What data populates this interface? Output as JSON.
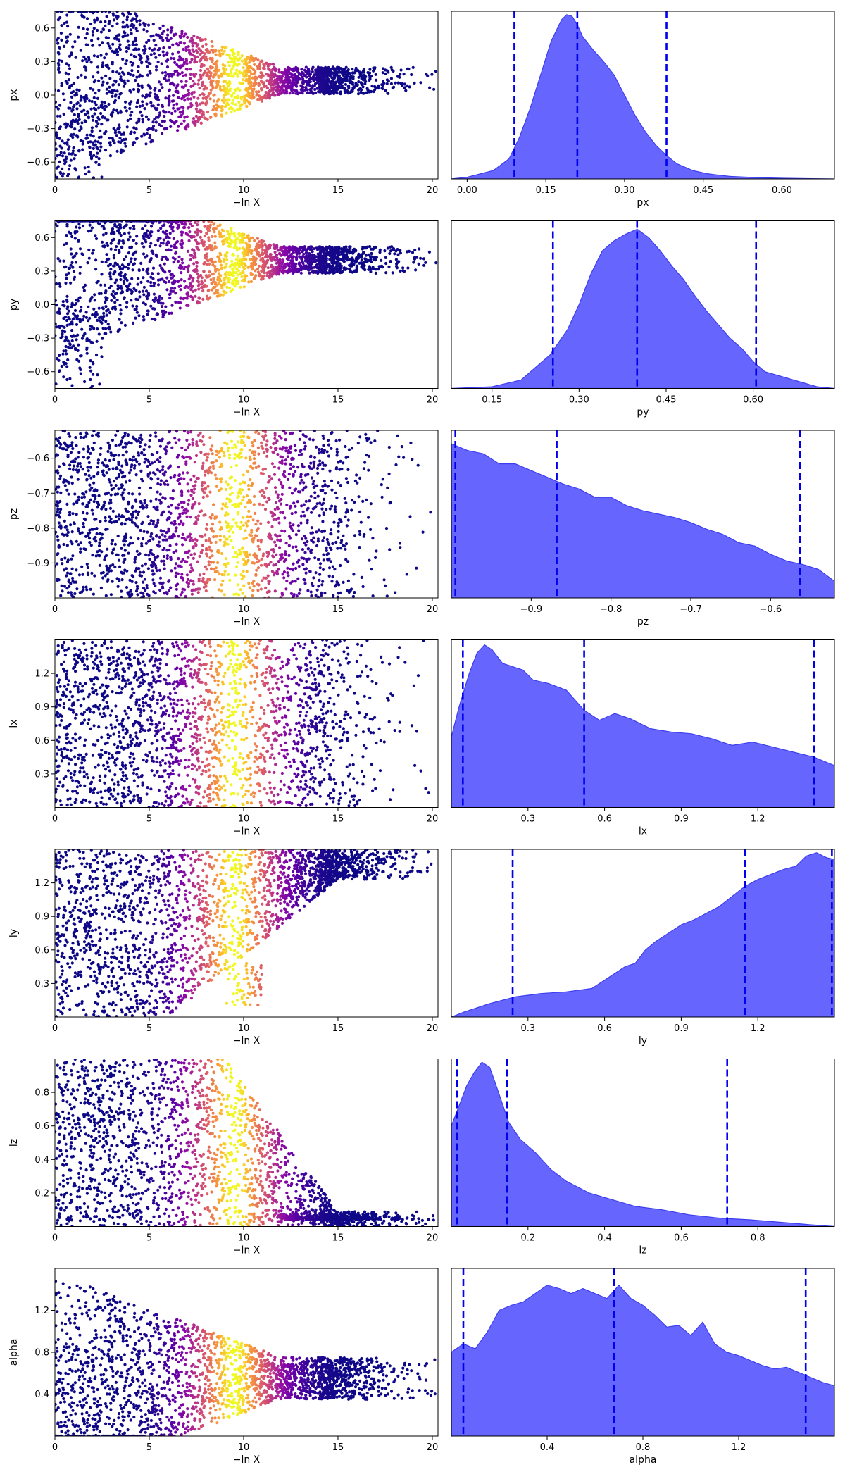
{
  "chart_data": [
    {
      "type": "scatter",
      "parameter": "px",
      "xlabel": "−ln X",
      "ylabel": "px",
      "xlim": [
        0,
        20.3
      ],
      "ylim": [
        -0.75,
        0.75
      ],
      "xticks": [
        0,
        5,
        10,
        15,
        20
      ],
      "xtick_labels": [
        "0",
        "5",
        "10",
        "15",
        "20"
      ],
      "yticks": [
        0.6,
        0.3,
        0.0,
        -0.3,
        -0.6
      ],
      "ytick_labels": [
        "0.6",
        "0.3",
        "0.0",
        "−0.3",
        "−0.6"
      ],
      "colormap": "plasma",
      "color_peak_x": 9.5,
      "shape": "funnel",
      "tail_value": 0.13,
      "tail_start_x": 9,
      "tail_spread": 0.12,
      "max_x": 20.2
    },
    {
      "type": "area",
      "parameter": "px",
      "xlabel": "px",
      "xlim": [
        -0.03,
        0.7
      ],
      "xticks": [
        0.0,
        0.15,
        0.3,
        0.45,
        0.6
      ],
      "xtick_labels": [
        "0.00",
        "0.15",
        "0.30",
        "0.45",
        "0.60"
      ],
      "x": [
        -0.03,
        0.0,
        0.05,
        0.08,
        0.1,
        0.12,
        0.14,
        0.16,
        0.18,
        0.19,
        0.2,
        0.21,
        0.22,
        0.24,
        0.26,
        0.28,
        0.3,
        0.32,
        0.34,
        0.36,
        0.38,
        0.4,
        0.43,
        0.46,
        0.5,
        0.55,
        0.6,
        0.7
      ],
      "density": [
        0.0,
        0.01,
        0.05,
        0.12,
        0.25,
        0.42,
        0.62,
        0.82,
        0.95,
        0.98,
        0.97,
        0.92,
        0.85,
        0.77,
        0.7,
        0.62,
        0.5,
        0.38,
        0.28,
        0.2,
        0.14,
        0.09,
        0.05,
        0.03,
        0.015,
        0.008,
        0.004,
        0.0
      ],
      "quantile_lines": [
        0.09,
        0.21,
        0.38
      ],
      "fill_color": "#6666ff",
      "edge_color": "#3d3df0",
      "line_color": "#0000ee"
    },
    {
      "type": "scatter",
      "parameter": "py",
      "xlabel": "−ln X",
      "ylabel": "py",
      "xlim": [
        0,
        20.3
      ],
      "ylim": [
        -0.75,
        0.75
      ],
      "xticks": [
        0,
        5,
        10,
        15,
        20
      ],
      "xtick_labels": [
        "0",
        "5",
        "10",
        "15",
        "20"
      ],
      "yticks": [
        0.6,
        0.3,
        0.0,
        -0.3,
        -0.6
      ],
      "ytick_labels": [
        "0.6",
        "0.3",
        "0.0",
        "−0.3",
        "−0.6"
      ],
      "colormap": "plasma",
      "color_peak_x": 9.5,
      "shape": "funnel",
      "tail_value": 0.4,
      "tail_start_x": 9,
      "tail_spread": 0.12,
      "max_x": 20.2
    },
    {
      "type": "area",
      "parameter": "py",
      "xlabel": "py",
      "xlim": [
        0.08,
        0.74
      ],
      "xticks": [
        0.15,
        0.3,
        0.45,
        0.6
      ],
      "xtick_labels": [
        "0.15",
        "0.30",
        "0.45",
        "0.60"
      ],
      "x": [
        0.08,
        0.15,
        0.2,
        0.25,
        0.28,
        0.3,
        0.32,
        0.34,
        0.36,
        0.38,
        0.4,
        0.42,
        0.44,
        0.46,
        0.48,
        0.5,
        0.52,
        0.54,
        0.56,
        0.58,
        0.6,
        0.62,
        0.65,
        0.68,
        0.71,
        0.74
      ],
      "density": [
        0.0,
        0.01,
        0.05,
        0.2,
        0.35,
        0.5,
        0.68,
        0.82,
        0.88,
        0.92,
        0.95,
        0.9,
        0.82,
        0.73,
        0.65,
        0.55,
        0.46,
        0.38,
        0.3,
        0.24,
        0.16,
        0.1,
        0.07,
        0.04,
        0.01,
        0.0
      ],
      "quantile_lines": [
        0.255,
        0.4,
        0.605
      ],
      "fill_color": "#6666ff",
      "edge_color": "#3d3df0",
      "line_color": "#0000ee"
    },
    {
      "type": "scatter",
      "parameter": "pz",
      "xlabel": "−ln X",
      "ylabel": "pz",
      "xlim": [
        0,
        20.3
      ],
      "ylim": [
        -1.0,
        -0.52
      ],
      "xticks": [
        0,
        5,
        10,
        15,
        20
      ],
      "xtick_labels": [
        "0",
        "5",
        "10",
        "15",
        "20"
      ],
      "yticks": [
        -0.6,
        -0.7,
        -0.8,
        -0.9
      ],
      "ytick_labels": [
        "−0.6",
        "−0.7",
        "−0.8",
        "−0.9"
      ],
      "colormap": "plasma",
      "color_peak_x": 9.5,
      "shape": "band",
      "max_x": 20.0
    },
    {
      "type": "area",
      "parameter": "pz",
      "xlabel": "pz",
      "xlim": [
        -1.0,
        -0.52
      ],
      "xticks": [
        -0.9,
        -0.8,
        -0.7,
        -0.6
      ],
      "xtick_labels": [
        "−0.9",
        "−0.8",
        "−0.7",
        "−0.6"
      ],
      "x": [
        -1.0,
        -0.98,
        -0.96,
        -0.94,
        -0.92,
        -0.9,
        -0.88,
        -0.86,
        -0.84,
        -0.82,
        -0.8,
        -0.78,
        -0.76,
        -0.74,
        -0.72,
        -0.7,
        -0.68,
        -0.66,
        -0.64,
        -0.62,
        -0.6,
        -0.58,
        -0.56,
        -0.54,
        -0.52
      ],
      "density": [
        0.92,
        0.88,
        0.86,
        0.8,
        0.8,
        0.76,
        0.72,
        0.68,
        0.65,
        0.6,
        0.6,
        0.55,
        0.52,
        0.5,
        0.48,
        0.45,
        0.41,
        0.38,
        0.33,
        0.31,
        0.26,
        0.22,
        0.2,
        0.17,
        0.1
      ],
      "quantile_lines": [
        -0.995,
        -0.868,
        -0.563
      ],
      "fill_color": "#6666ff",
      "edge_color": "#3d3df0",
      "line_color": "#0000ee"
    },
    {
      "type": "scatter",
      "parameter": "lx",
      "xlabel": "−ln X",
      "ylabel": "lx",
      "xlim": [
        0,
        20.3
      ],
      "ylim": [
        0.0,
        1.5
      ],
      "xticks": [
        0,
        5,
        10,
        15,
        20
      ],
      "xtick_labels": [
        "0",
        "5",
        "10",
        "15",
        "20"
      ],
      "yticks": [
        1.2,
        0.9,
        0.6,
        0.3
      ],
      "ytick_labels": [
        "1.2",
        "0.9",
        "0.6",
        "0.3"
      ],
      "colormap": "plasma",
      "color_peak_x": 9.5,
      "shape": "band",
      "max_x": 20.2
    },
    {
      "type": "area",
      "parameter": "lx",
      "xlabel": "lx",
      "xlim": [
        0.0,
        1.5
      ],
      "xticks": [
        0.3,
        0.6,
        0.9,
        1.2
      ],
      "xtick_labels": [
        "0.3",
        "0.6",
        "0.9",
        "1.2"
      ],
      "x": [
        0.0,
        0.03,
        0.07,
        0.1,
        0.13,
        0.16,
        0.2,
        0.24,
        0.28,
        0.32,
        0.38,
        0.45,
        0.52,
        0.58,
        0.64,
        0.7,
        0.78,
        0.86,
        0.94,
        1.02,
        1.1,
        1.18,
        1.26,
        1.34,
        1.42,
        1.5
      ],
      "density": [
        0.42,
        0.6,
        0.8,
        0.92,
        0.97,
        0.94,
        0.86,
        0.84,
        0.82,
        0.76,
        0.74,
        0.7,
        0.58,
        0.52,
        0.56,
        0.53,
        0.47,
        0.45,
        0.44,
        0.41,
        0.37,
        0.39,
        0.36,
        0.33,
        0.3,
        0.25
      ],
      "quantile_lines": [
        0.045,
        0.52,
        1.42
      ],
      "fill_color": "#6666ff",
      "edge_color": "#3d3df0",
      "line_color": "#0000ee"
    },
    {
      "type": "scatter",
      "parameter": "ly",
      "xlabel": "−ln X",
      "ylabel": "ly",
      "xlim": [
        0,
        20.3
      ],
      "ylim": [
        0.0,
        1.5
      ],
      "xticks": [
        0,
        5,
        10,
        15,
        20
      ],
      "xtick_labels": [
        "0",
        "5",
        "10",
        "15",
        "20"
      ],
      "yticks": [
        1.2,
        0.9,
        0.6,
        0.3
      ],
      "ytick_labels": [
        "1.2",
        "0.9",
        "0.6",
        "0.3"
      ],
      "colormap": "plasma",
      "color_peak_x": 9.5,
      "shape": "floor",
      "tail_value": 1.38,
      "tail_start_x": 6,
      "tail_spread": 0.15,
      "max_x": 20.2
    },
    {
      "type": "area",
      "parameter": "ly",
      "xlabel": "ly",
      "xlim": [
        0.0,
        1.5
      ],
      "xticks": [
        0.3,
        0.6,
        0.9,
        1.2
      ],
      "xtick_labels": [
        "0.3",
        "0.6",
        "0.9",
        "1.2"
      ],
      "x": [
        0.0,
        0.05,
        0.15,
        0.25,
        0.35,
        0.45,
        0.55,
        0.62,
        0.68,
        0.72,
        0.76,
        0.8,
        0.85,
        0.9,
        0.95,
        1.0,
        1.05,
        1.1,
        1.15,
        1.2,
        1.25,
        1.3,
        1.35,
        1.39,
        1.43,
        1.47,
        1.5
      ],
      "density": [
        0.0,
        0.03,
        0.08,
        0.12,
        0.14,
        0.15,
        0.17,
        0.24,
        0.3,
        0.32,
        0.4,
        0.45,
        0.5,
        0.55,
        0.58,
        0.62,
        0.66,
        0.72,
        0.78,
        0.82,
        0.85,
        0.88,
        0.9,
        0.96,
        0.98,
        0.95,
        0.94
      ],
      "quantile_lines": [
        0.24,
        1.15,
        1.49
      ],
      "fill_color": "#6666ff",
      "edge_color": "#3d3df0",
      "line_color": "#0000ee"
    },
    {
      "type": "scatter",
      "parameter": "lz",
      "xlabel": "−ln X",
      "ylabel": "lz",
      "xlim": [
        0,
        20.3
      ],
      "ylim": [
        0.0,
        1.0
      ],
      "xticks": [
        0,
        5,
        10,
        15,
        20
      ],
      "xtick_labels": [
        "0",
        "5",
        "10",
        "15",
        "20"
      ],
      "yticks": [
        0.8,
        0.6,
        0.4,
        0.2
      ],
      "ytick_labels": [
        "0.8",
        "0.6",
        "0.4",
        "0.2"
      ],
      "colormap": "plasma",
      "color_peak_x": 9.5,
      "shape": "ceiling",
      "tail_value": 0.04,
      "tail_start_x": 9,
      "tail_spread": 0.05,
      "max_x": 20.2
    },
    {
      "type": "area",
      "parameter": "lz",
      "xlabel": "lz",
      "xlim": [
        0.0,
        1.0
      ],
      "xticks": [
        0.2,
        0.4,
        0.6,
        0.8
      ],
      "xtick_labels": [
        "0.2",
        "0.4",
        "0.6",
        "0.8"
      ],
      "x": [
        0.0,
        0.02,
        0.04,
        0.06,
        0.08,
        0.1,
        0.12,
        0.15,
        0.18,
        0.22,
        0.26,
        0.3,
        0.36,
        0.42,
        0.48,
        0.55,
        0.62,
        0.7,
        0.78,
        0.86,
        0.94,
        1.0
      ],
      "density": [
        0.6,
        0.72,
        0.84,
        0.92,
        0.98,
        0.95,
        0.82,
        0.62,
        0.52,
        0.44,
        0.34,
        0.27,
        0.2,
        0.16,
        0.12,
        0.1,
        0.07,
        0.05,
        0.04,
        0.025,
        0.01,
        0.0
      ],
      "quantile_lines": [
        0.015,
        0.145,
        0.72
      ],
      "fill_color": "#6666ff",
      "edge_color": "#3d3df0",
      "line_color": "#0000ee"
    },
    {
      "type": "scatter",
      "parameter": "alpha",
      "xlabel": "−ln X",
      "ylabel": "alpha",
      "xlim": [
        0,
        20.3
      ],
      "ylim": [
        0.0,
        1.6
      ],
      "xticks": [
        0,
        5,
        10,
        15,
        20
      ],
      "xtick_labels": [
        "0",
        "5",
        "10",
        "15",
        "20"
      ],
      "yticks": [
        1.2,
        0.8,
        0.4
      ],
      "ytick_labels": [
        "1.2",
        "0.8",
        "0.4"
      ],
      "colormap": "plasma",
      "color_peak_x": 9.5,
      "shape": "funnel",
      "tail_value": 0.55,
      "tail_start_x": 9,
      "tail_spread": 0.2,
      "max_x": 20.2
    },
    {
      "type": "area",
      "parameter": "alpha",
      "xlabel": "alpha",
      "xlim": [
        0.0,
        1.6
      ],
      "xticks": [
        0.4,
        0.8,
        1.2
      ],
      "xtick_labels": [
        "0.4",
        "0.8",
        "1.2"
      ],
      "x": [
        0.0,
        0.05,
        0.1,
        0.15,
        0.2,
        0.25,
        0.3,
        0.35,
        0.4,
        0.45,
        0.5,
        0.55,
        0.6,
        0.65,
        0.7,
        0.75,
        0.8,
        0.85,
        0.9,
        0.95,
        1.0,
        1.05,
        1.1,
        1.15,
        1.2,
        1.25,
        1.3,
        1.35,
        1.4,
        1.45,
        1.5,
        1.55,
        1.6
      ],
      "density": [
        0.5,
        0.55,
        0.52,
        0.62,
        0.75,
        0.78,
        0.8,
        0.85,
        0.9,
        0.88,
        0.85,
        0.88,
        0.85,
        0.82,
        0.9,
        0.82,
        0.78,
        0.72,
        0.65,
        0.66,
        0.6,
        0.68,
        0.55,
        0.5,
        0.48,
        0.45,
        0.42,
        0.4,
        0.41,
        0.38,
        0.35,
        0.32,
        0.3
      ],
      "quantile_lines": [
        0.05,
        0.68,
        1.48
      ],
      "fill_color": "#6666ff",
      "edge_color": "#3d3df0",
      "line_color": "#0000ee"
    }
  ]
}
